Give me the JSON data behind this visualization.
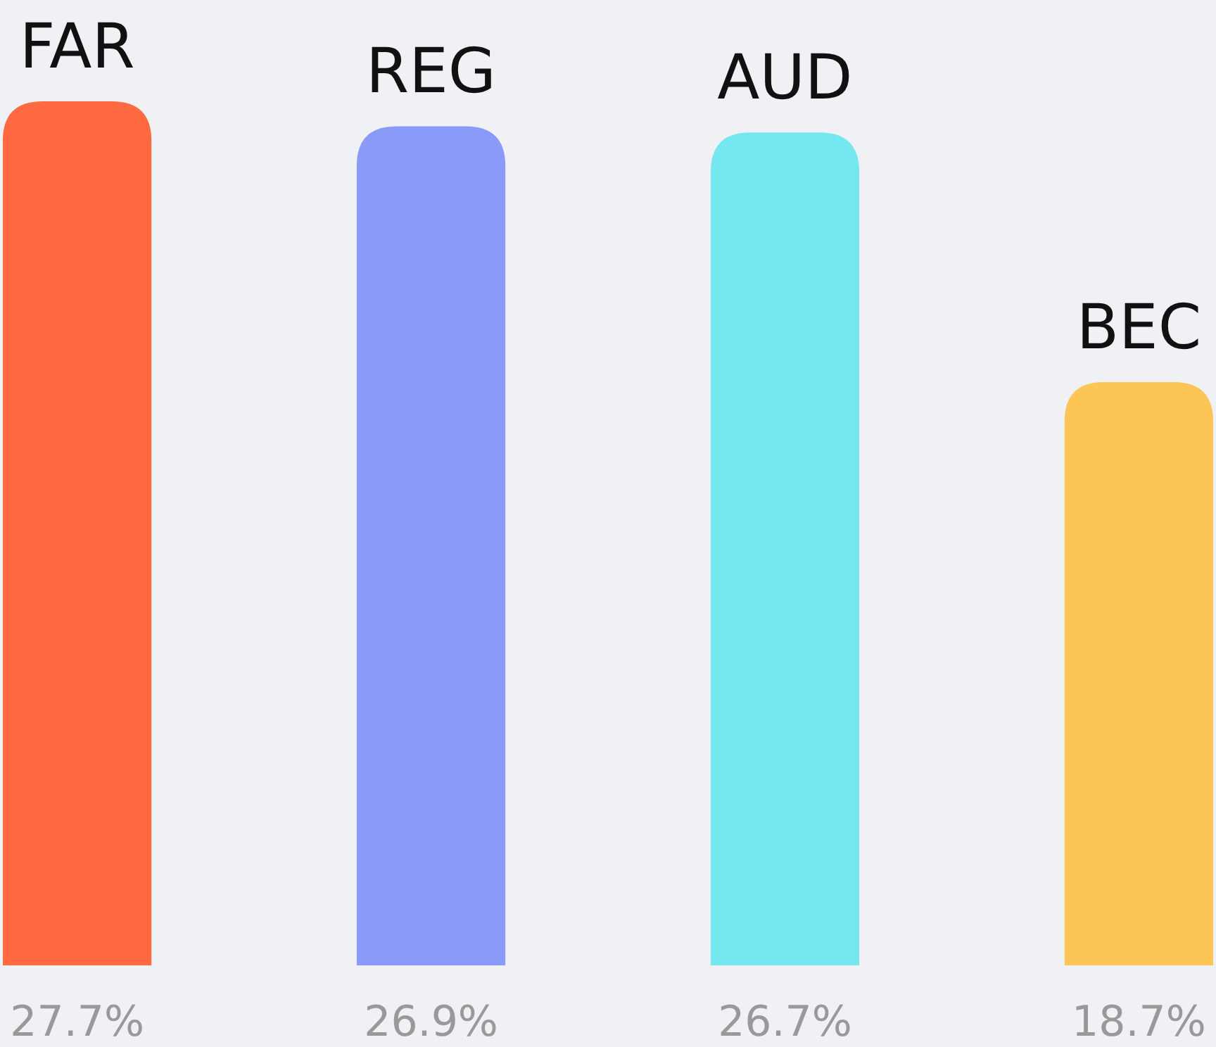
{
  "chart_data": {
    "type": "bar",
    "categories": [
      "FAR",
      "REG",
      "AUD",
      "BEC"
    ],
    "values": [
      27.7,
      26.9,
      26.7,
      18.7
    ],
    "colors": [
      "#ff6a42",
      "#8a9af9",
      "#75e7ee",
      "#fdc555"
    ],
    "value_labels": [
      "27.7%",
      "26.9%",
      "26.7%",
      "18.7%"
    ]
  }
}
